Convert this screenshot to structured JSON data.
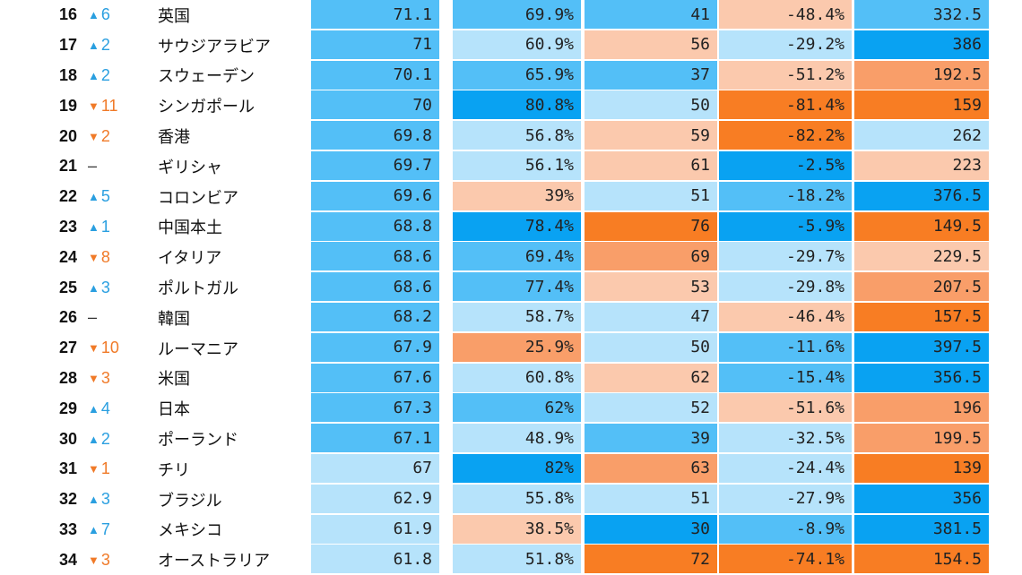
{
  "colors": {
    "dark_blue": "#09a2f2",
    "mid_blue": "#53bff7",
    "light_blue": "#b6e3fb",
    "light_orange": "#fbc9ad",
    "mid_orange": "#f99e69",
    "dark_orange": "#f87d23",
    "up_arrow": "#2a9fe0",
    "down_arrow": "#f07a28"
  },
  "rows": [
    {
      "rank": "16",
      "dir": "up",
      "arrow": "▲",
      "change": "6",
      "country": "英国",
      "v1": "71.1",
      "v2": "69.9%",
      "v3": "41",
      "v4": "-48.4%",
      "v5": "332.5",
      "c1": "mid_blue",
      "c2": "mid_blue",
      "c3": "mid_blue",
      "c4": "light_orange",
      "c5": "mid_blue"
    },
    {
      "rank": "17",
      "dir": "up",
      "arrow": "▲",
      "change": "2",
      "country": "サウジアラビア",
      "v1": "71",
      "v2": "60.9%",
      "v3": "56",
      "v4": "-29.2%",
      "v5": "386",
      "c1": "mid_blue",
      "c2": "light_blue",
      "c3": "light_orange",
      "c4": "light_blue",
      "c5": "dark_blue"
    },
    {
      "rank": "18",
      "dir": "up",
      "arrow": "▲",
      "change": "2",
      "country": "スウェーデン",
      "v1": "70.1",
      "v2": "65.9%",
      "v3": "37",
      "v4": "-51.2%",
      "v5": "192.5",
      "c1": "mid_blue",
      "c2": "mid_blue",
      "c3": "mid_blue",
      "c4": "light_orange",
      "c5": "mid_orange"
    },
    {
      "rank": "19",
      "dir": "down",
      "arrow": "▼",
      "change": "11",
      "country": "シンガポール",
      "v1": "70",
      "v2": "80.8%",
      "v3": "50",
      "v4": "-81.4%",
      "v5": "159",
      "c1": "mid_blue",
      "c2": "dark_blue",
      "c3": "light_blue",
      "c4": "dark_orange",
      "c5": "dark_orange"
    },
    {
      "rank": "20",
      "dir": "down",
      "arrow": "▼",
      "change": "2",
      "country": "香港",
      "v1": "69.8",
      "v2": "56.8%",
      "v3": "59",
      "v4": "-82.2%",
      "v5": "262",
      "c1": "mid_blue",
      "c2": "light_blue",
      "c3": "light_orange",
      "c4": "dark_orange",
      "c5": "light_blue"
    },
    {
      "rank": "21",
      "dir": "none",
      "arrow": "",
      "change": "–",
      "country": "ギリシャ",
      "v1": "69.7",
      "v2": "56.1%",
      "v3": "61",
      "v4": "-2.5%",
      "v5": "223",
      "c1": "mid_blue",
      "c2": "light_blue",
      "c3": "light_orange",
      "c4": "dark_blue",
      "c5": "light_orange"
    },
    {
      "rank": "22",
      "dir": "up",
      "arrow": "▲",
      "change": "5",
      "country": "コロンビア",
      "v1": "69.6",
      "v2": "39%",
      "v3": "51",
      "v4": "-18.2%",
      "v5": "376.5",
      "c1": "mid_blue",
      "c2": "light_orange",
      "c3": "light_blue",
      "c4": "mid_blue",
      "c5": "dark_blue"
    },
    {
      "rank": "23",
      "dir": "up",
      "arrow": "▲",
      "change": "1",
      "country": "中国本土",
      "v1": "68.8",
      "v2": "78.4%",
      "v3": "76",
      "v4": "-5.9%",
      "v5": "149.5",
      "c1": "mid_blue",
      "c2": "dark_blue",
      "c3": "dark_orange",
      "c4": "dark_blue",
      "c5": "dark_orange"
    },
    {
      "rank": "24",
      "dir": "down",
      "arrow": "▼",
      "change": "8",
      "country": "イタリア",
      "v1": "68.6",
      "v2": "69.4%",
      "v3": "69",
      "v4": "-29.7%",
      "v5": "229.5",
      "c1": "mid_blue",
      "c2": "mid_blue",
      "c3": "mid_orange",
      "c4": "light_blue",
      "c5": "light_orange"
    },
    {
      "rank": "25",
      "dir": "up",
      "arrow": "▲",
      "change": "3",
      "country": "ポルトガル",
      "v1": "68.6",
      "v2": "77.4%",
      "v3": "53",
      "v4": "-29.8%",
      "v5": "207.5",
      "c1": "mid_blue",
      "c2": "mid_blue",
      "c3": "light_orange",
      "c4": "light_blue",
      "c5": "mid_orange"
    },
    {
      "rank": "26",
      "dir": "none",
      "arrow": "",
      "change": "–",
      "country": "韓国",
      "v1": "68.2",
      "v2": "58.7%",
      "v3": "47",
      "v4": "-46.4%",
      "v5": "157.5",
      "c1": "mid_blue",
      "c2": "light_blue",
      "c3": "light_blue",
      "c4": "light_orange",
      "c5": "dark_orange"
    },
    {
      "rank": "27",
      "dir": "down",
      "arrow": "▼",
      "change": "10",
      "country": "ルーマニア",
      "v1": "67.9",
      "v2": "25.9%",
      "v3": "50",
      "v4": "-11.6%",
      "v5": "397.5",
      "c1": "mid_blue",
      "c2": "mid_orange",
      "c3": "light_blue",
      "c4": "mid_blue",
      "c5": "dark_blue"
    },
    {
      "rank": "28",
      "dir": "down",
      "arrow": "▼",
      "change": "3",
      "country": "米国",
      "v1": "67.6",
      "v2": "60.8%",
      "v3": "62",
      "v4": "-15.4%",
      "v5": "356.5",
      "c1": "mid_blue",
      "c2": "light_blue",
      "c3": "light_orange",
      "c4": "mid_blue",
      "c5": "dark_blue"
    },
    {
      "rank": "29",
      "dir": "up",
      "arrow": "▲",
      "change": "4",
      "country": "日本",
      "v1": "67.3",
      "v2": "62%",
      "v3": "52",
      "v4": "-51.6%",
      "v5": "196",
      "c1": "mid_blue",
      "c2": "mid_blue",
      "c3": "light_blue",
      "c4": "light_orange",
      "c5": "mid_orange"
    },
    {
      "rank": "30",
      "dir": "up",
      "arrow": "▲",
      "change": "2",
      "country": "ポーランド",
      "v1": "67.1",
      "v2": "48.9%",
      "v3": "39",
      "v4": "-32.5%",
      "v5": "199.5",
      "c1": "mid_blue",
      "c2": "light_blue",
      "c3": "mid_blue",
      "c4": "light_blue",
      "c5": "mid_orange"
    },
    {
      "rank": "31",
      "dir": "down",
      "arrow": "▼",
      "change": "1",
      "country": "チリ",
      "v1": "67",
      "v2": "82%",
      "v3": "63",
      "v4": "-24.4%",
      "v5": "139",
      "c1": "light_blue",
      "c2": "dark_blue",
      "c3": "mid_orange",
      "c4": "light_blue",
      "c5": "dark_orange"
    },
    {
      "rank": "32",
      "dir": "up",
      "arrow": "▲",
      "change": "3",
      "country": "ブラジル",
      "v1": "62.9",
      "v2": "55.8%",
      "v3": "51",
      "v4": "-27.9%",
      "v5": "356",
      "c1": "light_blue",
      "c2": "light_blue",
      "c3": "light_blue",
      "c4": "light_blue",
      "c5": "dark_blue"
    },
    {
      "rank": "33",
      "dir": "up",
      "arrow": "▲",
      "change": "7",
      "country": "メキシコ",
      "v1": "61.9",
      "v2": "38.5%",
      "v3": "30",
      "v4": "-8.9%",
      "v5": "381.5",
      "c1": "light_blue",
      "c2": "light_orange",
      "c3": "dark_blue",
      "c4": "mid_blue",
      "c5": "dark_blue"
    },
    {
      "rank": "34",
      "dir": "down",
      "arrow": "▼",
      "change": "3",
      "country": "オーストラリア",
      "v1": "61.8",
      "v2": "51.8%",
      "v3": "72",
      "v4": "-74.1%",
      "v5": "154.5",
      "c1": "light_blue",
      "c2": "light_blue",
      "c3": "dark_orange",
      "c4": "dark_orange",
      "c5": "dark_orange"
    }
  ]
}
